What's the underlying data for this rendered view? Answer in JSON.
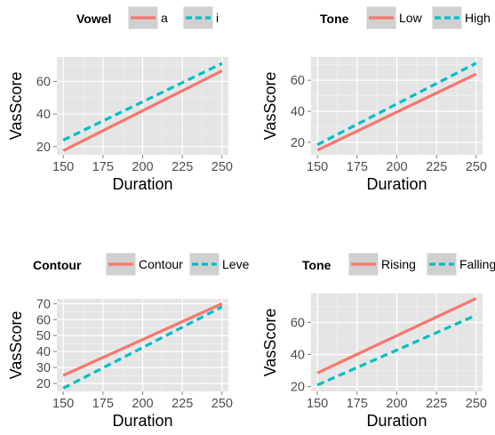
{
  "chart_data": [
    {
      "type": "line",
      "legend": {
        "title": "Vowel",
        "position": "top"
      },
      "xlabel": "Duration",
      "ylabel": "VasScore",
      "xlim": [
        146,
        254
      ],
      "ylim": [
        15,
        75
      ],
      "xticks": [
        150,
        175,
        200,
        225,
        250
      ],
      "yticks": [
        20,
        40,
        60
      ],
      "x": [
        150,
        250
      ],
      "series": [
        {
          "name": "a",
          "values": [
            17.5,
            66.5
          ],
          "color": "#F8766D",
          "dash": "solid"
        },
        {
          "name": "i",
          "values": [
            24.0,
            71.0
          ],
          "color": "#00BFC4",
          "dash": "dashed"
        }
      ],
      "grid": true
    },
    {
      "type": "line",
      "legend": {
        "title": "Tone",
        "position": "top"
      },
      "xlabel": "Duration",
      "ylabel": "VasScore",
      "xlim": [
        146,
        254
      ],
      "ylim": [
        12,
        75
      ],
      "xticks": [
        150,
        175,
        200,
        225,
        250
      ],
      "yticks": [
        20,
        40,
        60
      ],
      "x": [
        150,
        250
      ],
      "series": [
        {
          "name": "Low",
          "values": [
            15.0,
            64.0
          ],
          "color": "#F8766D",
          "dash": "solid"
        },
        {
          "name": "High",
          "values": [
            18.5,
            71.0
          ],
          "color": "#00BFC4",
          "dash": "dashed"
        }
      ],
      "grid": true
    },
    {
      "type": "line",
      "legend": {
        "title": "Contour",
        "position": "top"
      },
      "xlabel": "Duration",
      "ylabel": "VasScore",
      "xlim": [
        146,
        254
      ],
      "ylim": [
        15,
        73
      ],
      "xticks": [
        150,
        175,
        200,
        225,
        250
      ],
      "yticks": [
        20,
        30,
        40,
        50,
        60,
        70
      ],
      "x": [
        150,
        250
      ],
      "series": [
        {
          "name": "Contour",
          "values": [
            25.0,
            70.0
          ],
          "color": "#F8766D",
          "dash": "solid"
        },
        {
          "name": "Leve",
          "values": [
            17.0,
            68.0
          ],
          "color": "#00BFC4",
          "dash": "dashed"
        }
      ],
      "grid": true
    },
    {
      "type": "line",
      "legend": {
        "title": "Tone",
        "position": "top"
      },
      "xlabel": "Duration",
      "ylabel": "VasScore",
      "xlim": [
        146,
        254
      ],
      "ylim": [
        17,
        78
      ],
      "xticks": [
        150,
        175,
        200,
        225,
        250
      ],
      "yticks": [
        20,
        40,
        60
      ],
      "x": [
        150,
        250
      ],
      "series": [
        {
          "name": "Rising",
          "values": [
            28.5,
            75.0
          ],
          "color": "#F8766D",
          "dash": "solid"
        },
        {
          "name": "Falling",
          "values": [
            21.0,
            64.5
          ],
          "color": "#00BFC4",
          "dash": "dashed"
        }
      ],
      "grid": true
    }
  ]
}
